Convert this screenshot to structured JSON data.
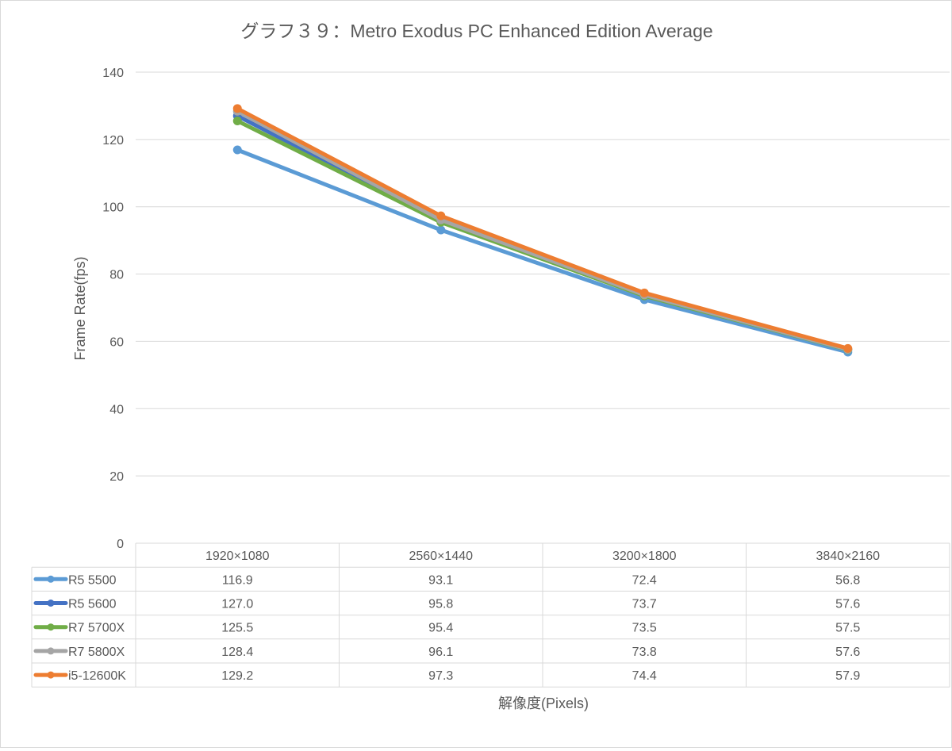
{
  "chart_data": {
    "type": "line",
    "title": "グラフ３９：Metro Exodus PC Enhanced Edition Average",
    "xlabel": "解像度(Pixels)",
    "ylabel": "Frame Rate(fps)",
    "ylim": [
      0,
      140
    ],
    "yticks": [
      "0",
      "20",
      "40",
      "60",
      "80",
      "100",
      "120",
      "140"
    ],
    "grid": true,
    "legend": "data-table",
    "categories": [
      "1920×1080",
      "2560×1440",
      "3200×1800",
      "3840×2160"
    ],
    "series": [
      {
        "name": "R5 5500",
        "color": "#5b9bd5",
        "values": [
          116.9,
          93.1,
          72.4,
          56.8
        ]
      },
      {
        "name": "R5 5600",
        "color": "#4472c4",
        "values": [
          127.0,
          95.8,
          73.7,
          57.6
        ]
      },
      {
        "name": "R7 5700X",
        "color": "#70ad47",
        "values": [
          125.5,
          95.4,
          73.5,
          57.5
        ]
      },
      {
        "name": "R7 5800X",
        "color": "#a5a5a5",
        "values": [
          128.4,
          96.1,
          73.8,
          57.6
        ]
      },
      {
        "name": "i5-12600K",
        "color": "#ed7d31",
        "values": [
          129.2,
          97.3,
          74.4,
          57.9
        ]
      }
    ],
    "table_values": [
      [
        "116.9",
        "93.1",
        "72.4",
        "56.8"
      ],
      [
        "127.0",
        "95.8",
        "73.7",
        "57.6"
      ],
      [
        "125.5",
        "95.4",
        "73.5",
        "57.5"
      ],
      [
        "128.4",
        "96.1",
        "73.8",
        "57.6"
      ],
      [
        "129.2",
        "97.3",
        "74.4",
        "57.9"
      ]
    ]
  }
}
